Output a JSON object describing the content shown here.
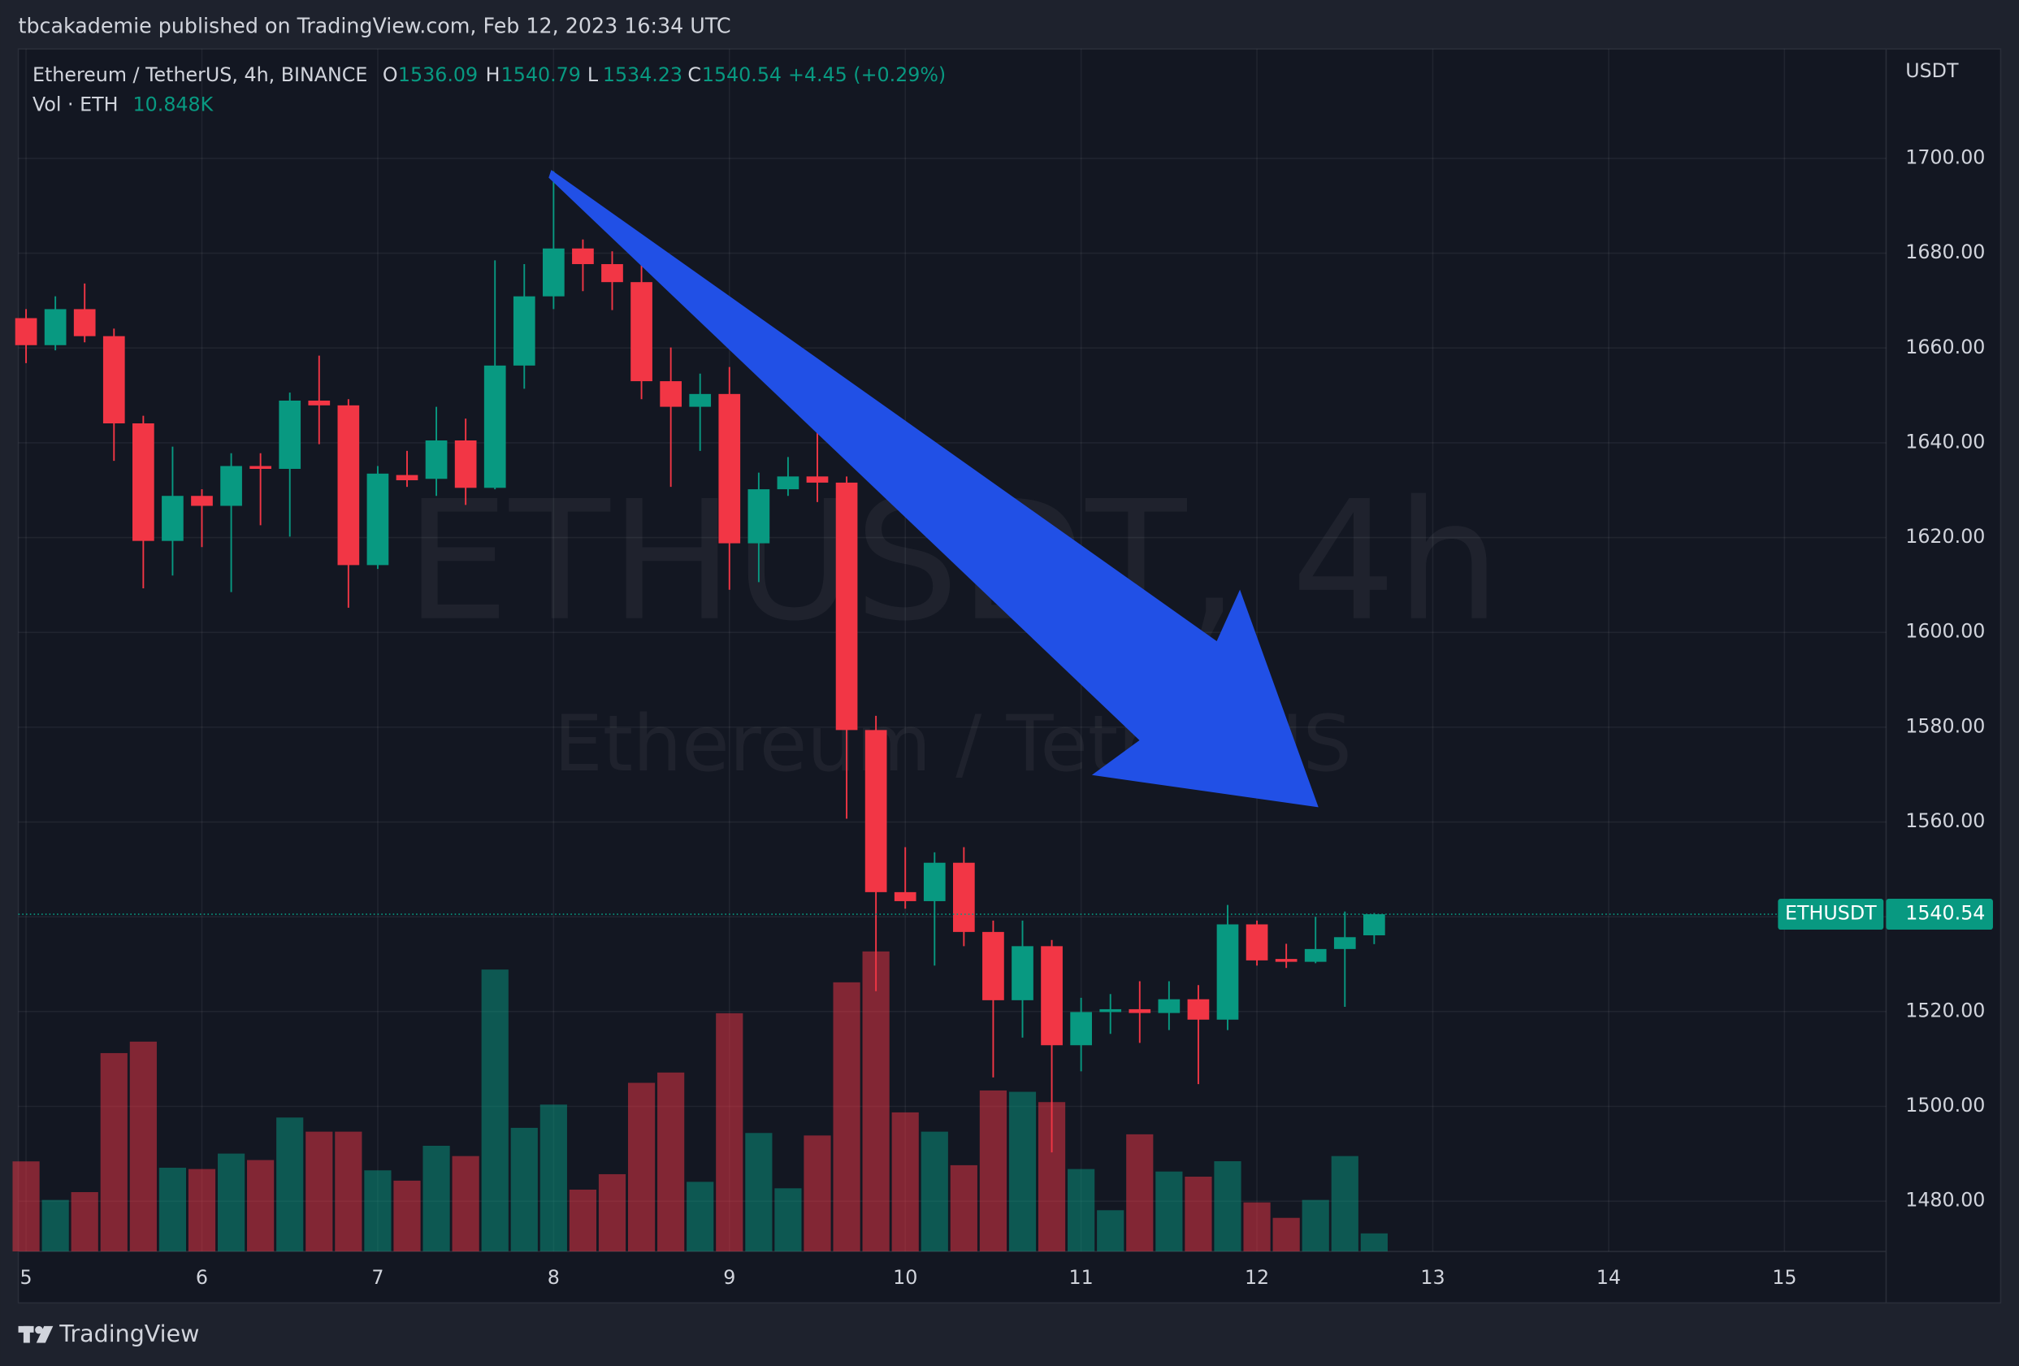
{
  "header": {
    "published": "tbcakademie published on TradingView.com, Feb 12, 2023 16:34 UTC"
  },
  "chart_data": {
    "type": "candlestick",
    "symbol": "Ethereum / TetherUS, 4h, BINANCE",
    "legend_labels": {
      "open": "O",
      "high": "H",
      "low": "L",
      "close": "C"
    },
    "change": "+4.45 (+0.29%)",
    "volume_title": "Vol · ETH",
    "volume_value_label": "10.848K",
    "currency": "USDT",
    "ticker": "ETHUSDT",
    "watermark": "ETHUSDT, 4h",
    "watermark_subtitle": "Ethereum / TetherUS",
    "x": [
      5,
      5.1667,
      5.3333,
      5.5,
      5.6667,
      5.8333,
      6,
      6.1667,
      6.3333,
      6.5,
      6.6667,
      6.8333,
      7,
      7.1667,
      7.3333,
      7.5,
      7.6667,
      7.8333,
      8,
      8.1667,
      8.3333,
      8.5,
      8.6667,
      8.8333,
      9,
      9.1667,
      9.3333,
      9.5,
      9.6667,
      9.8333,
      10,
      10.1667,
      10.3333,
      10.5,
      10.6667,
      10.8333,
      11,
      11.1667,
      11.3333,
      11.5,
      11.6667,
      11.8333,
      12,
      12.1667,
      12.3333,
      12.5,
      12.6667
    ],
    "open": [
      1666.3,
      1660.6,
      1668.2,
      1662.5,
      1644.1,
      1619.3,
      1628.8,
      1626.7,
      1635.1,
      1634.5,
      1648.9,
      1647.9,
      1614.2,
      1633.2,
      1632.4,
      1640.5,
      1630.5,
      1656.3,
      1670.9,
      1681.0,
      1677.7,
      1673.9,
      1653.0,
      1647.6,
      1650.3,
      1618.8,
      1630.2,
      1632.9,
      1631.6,
      1579.4,
      1545.2,
      1543.3,
      1551.4,
      1536.8,
      1522.4,
      1533.8,
      1512.9,
      1519.9,
      1520.5,
      1519.7,
      1522.6,
      1518.3,
      1538.4,
      1531.1,
      1530.5,
      1533.2,
      1536.09
    ],
    "high": [
      1668.2,
      1670.9,
      1673.6,
      1664.1,
      1645.7,
      1639.2,
      1630.2,
      1637.8,
      1637.8,
      1650.6,
      1658.4,
      1649.2,
      1635.1,
      1638.3,
      1647.6,
      1645.1,
      1678.5,
      1677.7,
      1697.3,
      1682.9,
      1680.4,
      1681.8,
      1660.1,
      1654.6,
      1656.0,
      1633.7,
      1637.0,
      1649.2,
      1632.9,
      1582.4,
      1554.7,
      1553.6,
      1554.7,
      1539.2,
      1539.2,
      1535.1,
      1522.9,
      1523.7,
      1526.4,
      1526.4,
      1525.6,
      1542.5,
      1539.2,
      1534.3,
      1540.0,
      1541.1,
      1540.79
    ],
    "low": [
      1656.8,
      1659.5,
      1661.2,
      1636.2,
      1609.3,
      1612.0,
      1618.0,
      1608.5,
      1622.6,
      1620.2,
      1639.7,
      1605.2,
      1613.4,
      1630.7,
      1628.8,
      1626.9,
      1630.2,
      1651.4,
      1668.2,
      1672.0,
      1668.0,
      1649.2,
      1630.7,
      1638.3,
      1609.0,
      1610.6,
      1628.8,
      1627.5,
      1560.7,
      1524.3,
      1541.7,
      1529.7,
      1533.8,
      1506.1,
      1514.5,
      1490.3,
      1507.4,
      1515.3,
      1513.4,
      1516.1,
      1504.7,
      1516.1,
      1529.7,
      1529.2,
      1530.2,
      1521.0,
      1534.23
    ],
    "close": [
      1660.6,
      1668.2,
      1662.5,
      1644.1,
      1619.3,
      1628.8,
      1626.7,
      1635.1,
      1634.5,
      1648.9,
      1647.9,
      1614.2,
      1633.5,
      1632.1,
      1640.5,
      1630.5,
      1656.3,
      1670.9,
      1681.0,
      1677.7,
      1673.9,
      1653.0,
      1647.6,
      1650.3,
      1618.8,
      1630.2,
      1632.9,
      1631.6,
      1579.4,
      1545.2,
      1543.3,
      1551.4,
      1536.8,
      1522.4,
      1533.8,
      1512.9,
      1519.9,
      1520.5,
      1519.7,
      1522.6,
      1518.3,
      1538.4,
      1530.8,
      1530.5,
      1533.2,
      1535.7,
      1540.54
    ],
    "volume": [
      54200,
      31000,
      35700,
      119400,
      126300,
      50400,
      49600,
      58900,
      55000,
      80600,
      72100,
      72100,
      48800,
      42600,
      63600,
      57400,
      169700,
      74400,
      88400,
      37200,
      46500,
      101500,
      107700,
      41900,
      143400,
      71300,
      38000,
      69800,
      162000,
      180600,
      83700,
      72100,
      51900,
      96900,
      96100,
      89900,
      49600,
      24800,
      70500,
      48100,
      45000,
      54300,
      29500,
      20200,
      31000,
      57400,
      10848
    ],
    "up_color": "#089981",
    "down_color": "#f23645",
    "xlim": [
      4.956,
      15.578
    ],
    "xticks": [
      5,
      6,
      7,
      8,
      9,
      10,
      11,
      12,
      13,
      14,
      15
    ],
    "ylim": [
      1469.4,
      1723.1
    ],
    "yticks": [
      {
        "value": 1480,
        "label": "1480.00"
      },
      {
        "value": 1500,
        "label": "1500.00"
      },
      {
        "value": 1520,
        "label": "1520.00"
      },
      {
        "value": 1540,
        "label": "1540.00"
      },
      {
        "value": 1560,
        "label": "1560.00"
      },
      {
        "value": 1580,
        "label": "1580.00"
      },
      {
        "value": 1600,
        "label": "1600.00"
      },
      {
        "value": 1620,
        "label": "1620.00"
      },
      {
        "value": 1640,
        "label": "1640.00"
      },
      {
        "value": 1660,
        "label": "1660.00"
      },
      {
        "value": 1680,
        "label": "1680.00"
      },
      {
        "value": 1700,
        "label": "1700.00"
      }
    ],
    "grid": true
  },
  "footer": {
    "brand": "TradingView"
  }
}
